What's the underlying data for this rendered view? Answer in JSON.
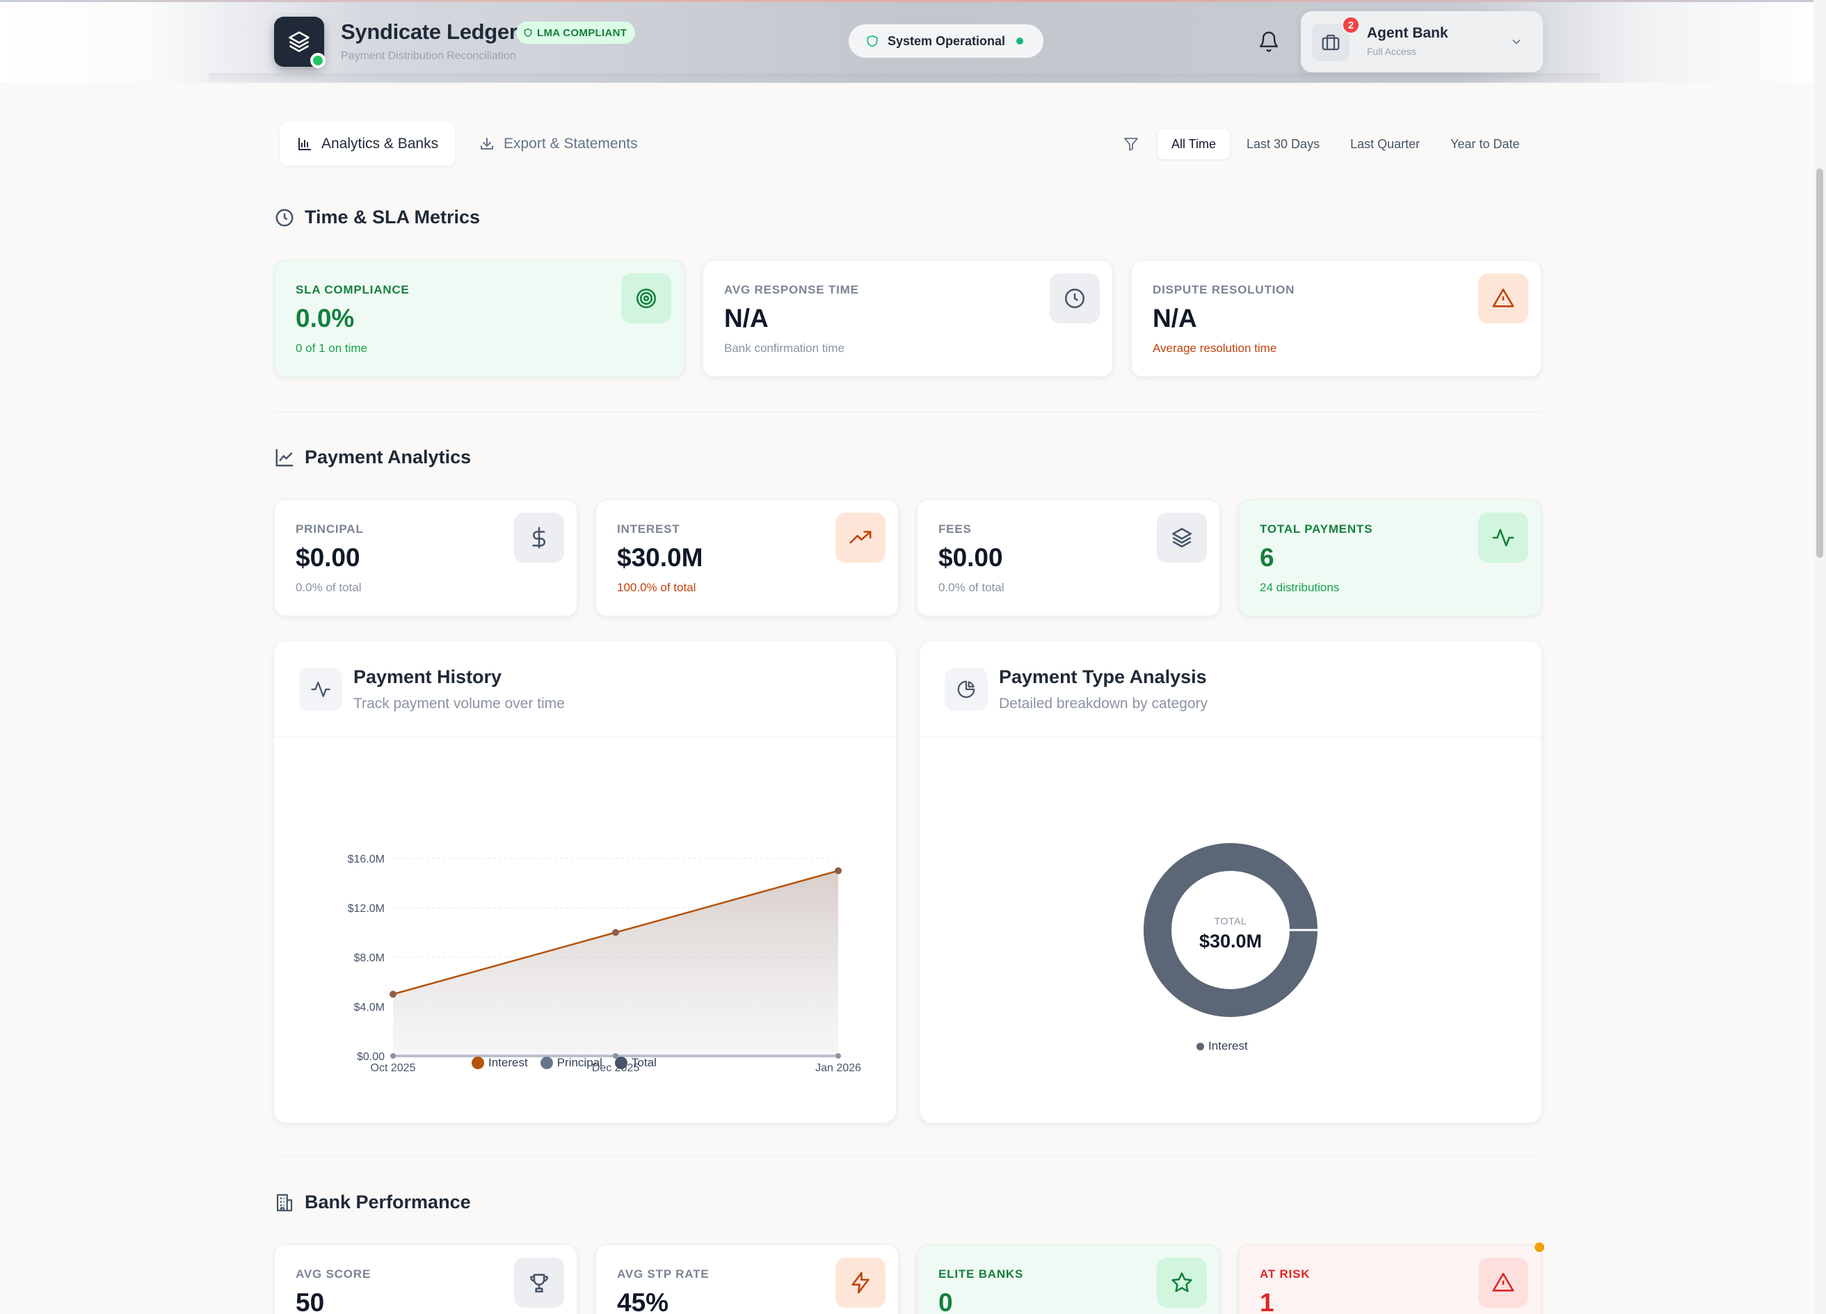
{
  "header": {
    "brand_title": "Syndicate Ledger",
    "brand_badge": "LMA COMPLIANT",
    "brand_subtitle": "Payment Distribution Reconciliation",
    "status_text": "System Operational",
    "notification_count": "2",
    "user_name": "Agent Bank",
    "user_role": "Full Access"
  },
  "tabs": [
    {
      "label": "Analytics & Banks",
      "icon": "bar-chart-icon",
      "active": true
    },
    {
      "label": "Export & Statements",
      "icon": "download-icon",
      "active": false
    }
  ],
  "time_ranges": [
    "All Time",
    "Last 30 Days",
    "Last Quarter",
    "Year to Date"
  ],
  "time_range_selected": "All Time",
  "sla_section": {
    "title": "Time & SLA Metrics",
    "cards": [
      {
        "label": "SLA COMPLIANCE",
        "value": "0.0%",
        "sub": "0 of 1 on time",
        "icon": "target-icon"
      },
      {
        "label": "AVG RESPONSE TIME",
        "value": "N/A",
        "sub": "Bank confirmation time",
        "icon": "clock-icon"
      },
      {
        "label": "DISPUTE RESOLUTION",
        "value": "N/A",
        "sub": "Average resolution time",
        "icon": "alert-triangle-icon"
      }
    ]
  },
  "payment_section": {
    "title": "Payment Analytics",
    "cards": [
      {
        "label": "PRINCIPAL",
        "value": "$0.00",
        "sub": "0.0% of total",
        "icon": "dollar-icon"
      },
      {
        "label": "INTEREST",
        "value": "$30.0M",
        "sub": "100.0% of total",
        "icon": "trending-up-icon"
      },
      {
        "label": "FEES",
        "value": "$0.00",
        "sub": "0.0% of total",
        "icon": "layers-icon"
      },
      {
        "label": "TOTAL PAYMENTS",
        "value": "6",
        "sub": "24 distributions",
        "icon": "activity-icon"
      }
    ]
  },
  "history_panel": {
    "title": "Payment History",
    "subtitle": "Track payment volume over time"
  },
  "type_panel": {
    "title": "Payment Type Analysis",
    "subtitle": "Detailed breakdown by category"
  },
  "bank_section": {
    "title": "Bank Performance",
    "cards": [
      {
        "label": "AVG SCORE",
        "value": "50",
        "icon": "trophy-icon"
      },
      {
        "label": "AVG STP RATE",
        "value": "45%",
        "icon": "zap-icon"
      },
      {
        "label": "ELITE BANKS",
        "value": "0",
        "icon": "star-icon"
      },
      {
        "label": "AT RISK",
        "value": "1",
        "icon": "alert-triangle-icon"
      }
    ]
  },
  "colors": {
    "interest": "#b45309",
    "principal": "#64748b",
    "total": "#475569",
    "accent_green": "#15803d",
    "danger": "#dc2626"
  },
  "chart_data": [
    {
      "type": "area",
      "title": "Payment History",
      "x": [
        "Oct 2025",
        "Dec 2025",
        "Jan 2026"
      ],
      "ytick_labels": [
        "$0.00",
        "$4.0M",
        "$8.0M",
        "$12.0M",
        "$16.0M"
      ],
      "ylim": [
        0,
        16
      ],
      "grid": true,
      "legend_position": "bottom",
      "series": [
        {
          "name": "Interest",
          "values": [
            5.0,
            10.0,
            15.0
          ],
          "color": "#b45309"
        },
        {
          "name": "Principal",
          "values": [
            0,
            0,
            0
          ],
          "color": "#64748b"
        },
        {
          "name": "Total",
          "values": [
            5.0,
            10.0,
            15.0
          ],
          "color": "#475569"
        }
      ]
    },
    {
      "type": "pie",
      "title": "Payment Type Analysis",
      "center_label": "TOTAL",
      "center_value": "$30.0M",
      "legend_position": "bottom",
      "slices": [
        {
          "name": "Interest",
          "value": 30.0,
          "color": "#5b6676"
        }
      ]
    }
  ]
}
